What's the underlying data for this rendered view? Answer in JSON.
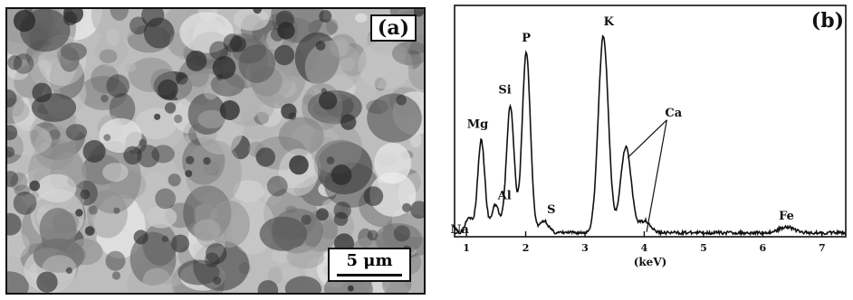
{
  "panel_a": {
    "label": "(a)",
    "scale_bar": "5 μm",
    "image_description_icon": "sem-micrograph"
  },
  "panel_b": {
    "label": "(b)"
  },
  "chart_data": {
    "type": "line",
    "title": "",
    "xlabel": "(keV)",
    "ylabel": "",
    "xlim": [
      0.8,
      7.4
    ],
    "ylim": [
      0,
      100
    ],
    "xticks": [
      1,
      2,
      3,
      4,
      5,
      6,
      7
    ],
    "grid": false,
    "peaks": [
      {
        "element": "Na",
        "energy": 1.04,
        "intensity": 8
      },
      {
        "element": "Mg",
        "energy": 1.25,
        "intensity": 46
      },
      {
        "element": "Al",
        "energy": 1.49,
        "intensity": 14
      },
      {
        "element": "Si",
        "energy": 1.74,
        "intensity": 63
      },
      {
        "element": "P",
        "energy": 2.01,
        "intensity": 90
      },
      {
        "element": "S",
        "energy": 2.31,
        "intensity": 6
      },
      {
        "element": "K",
        "energy": 3.31,
        "intensity": 98
      },
      {
        "element": "Ca",
        "energy": 3.69,
        "intensity": 43
      },
      {
        "element": "Ca",
        "energy": 4.01,
        "intensity": 6
      },
      {
        "element": "Fe",
        "energy": 6.4,
        "intensity": 3
      }
    ],
    "annotations": [
      "Na",
      "Mg",
      "Al",
      "Si",
      "P",
      "S",
      "K",
      "Ca",
      "Fe"
    ],
    "colors": {
      "line": "#111111",
      "background": "#ffffff"
    }
  }
}
